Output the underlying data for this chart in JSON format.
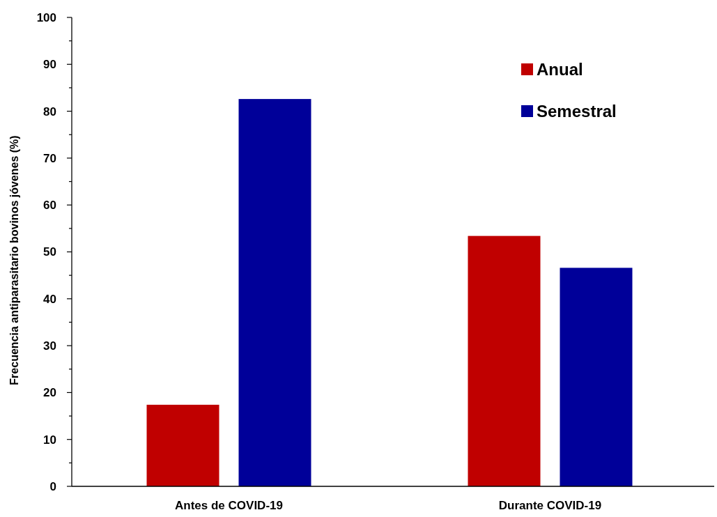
{
  "chart_data": {
    "type": "bar",
    "ylabel": "Frecuencia antiparasitario bovinos jóvenes (%)",
    "categories": [
      "Antes de COVID-19",
      "Durante COVID-19"
    ],
    "series": [
      {
        "name": "Anual",
        "color": "#c00000",
        "values": [
          17.4,
          53.4
        ]
      },
      {
        "name": "Semestral",
        "color": "#000099",
        "values": [
          82.6,
          46.6
        ]
      }
    ],
    "ylim": [
      0,
      100
    ],
    "yticks": [
      0,
      {
        "value": 5,
        "label": null
      },
      10,
      {
        "value": 15,
        "label": null
      },
      20,
      {
        "value": 25,
        "label": null
      },
      30,
      {
        "value": 35,
        "label": null
      },
      40,
      {
        "value": 45,
        "label": null
      },
      50,
      {
        "value": 55,
        "label": null
      },
      60,
      {
        "value": 65,
        "label": null
      },
      70,
      {
        "value": 75,
        "label": null
      },
      80,
      {
        "value": 85,
        "label": null
      },
      90,
      {
        "value": 95,
        "label": null
      },
      100
    ],
    "grid": false,
    "legend": "top right"
  }
}
